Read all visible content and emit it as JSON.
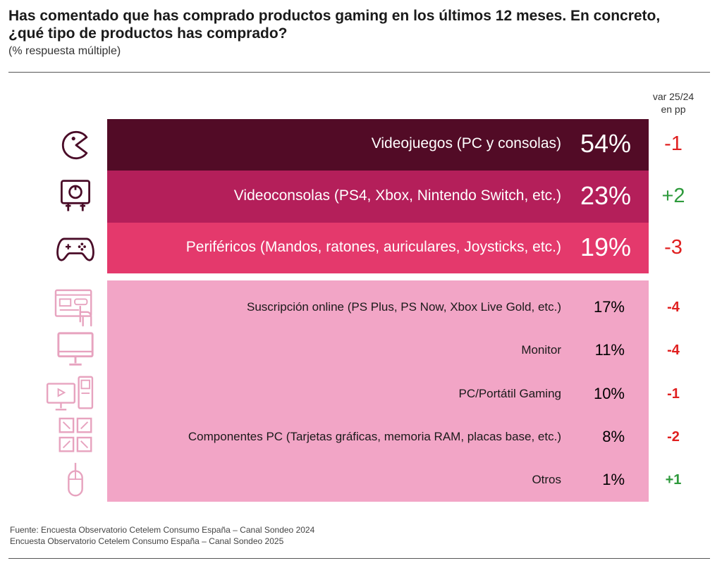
{
  "title": {
    "line1": "Has comentado que has comprado productos gaming en los últimos 12 meses. En concreto,",
    "line2": "¿qué tipo de productos has comprado?"
  },
  "subtitle": "(% respuesta múltiple)",
  "var_header": {
    "line1": "var 25/24",
    "line2": "en pp"
  },
  "colors": {
    "row1": "#520b26",
    "row2": "#b41f5a",
    "row3": "#e4396c",
    "rows_rest": "#f2a5c6",
    "positive": "#2e9a3c",
    "negative": "#e02020",
    "icon_dark": "#4a0c28",
    "icon_light": "#e7a3bf"
  },
  "chart_data": {
    "type": "table",
    "rows": [
      {
        "label": "Videojuegos (PC y consolas)",
        "value": "54%",
        "var": "-1",
        "icon": "pacman-icon"
      },
      {
        "label": "Videoconsolas (PS4, Xbox, Nintendo Switch, etc.)",
        "value": "23%",
        "var": "+2",
        "icon": "console-icon"
      },
      {
        "label": "Periféricos (Mandos, ratones, auriculares, Joysticks, etc.)",
        "value": "19%",
        "var": "-3",
        "icon": "gamepad-icon"
      },
      {
        "label": "Suscripción online (PS Plus, PS Now, Xbox Live Gold, etc.)",
        "value": "17%",
        "var": "-4",
        "icon": "subscription-icon"
      },
      {
        "label": "Monitor",
        "value": "11%",
        "var": "-4",
        "icon": "monitor-icon"
      },
      {
        "label": "PC/Portátil Gaming",
        "value": "10%",
        "var": "-1",
        "icon": "pc-icon"
      },
      {
        "label": "Componentes PC (Tarjetas gráficas, memoria RAM, placas base, etc.)",
        "value": "8%",
        "var": "-2",
        "icon": "components-icon"
      },
      {
        "label": "Otros",
        "value": "1%",
        "var": "+1",
        "icon": "mouse-icon"
      }
    ]
  },
  "source": {
    "line1": "Fuente: Encuesta Observatorio Cetelem Consumo España – Canal Sondeo 2024",
    "line2": "Encuesta Observatorio Cetelem Consumo España – Canal Sondeo 2025"
  }
}
